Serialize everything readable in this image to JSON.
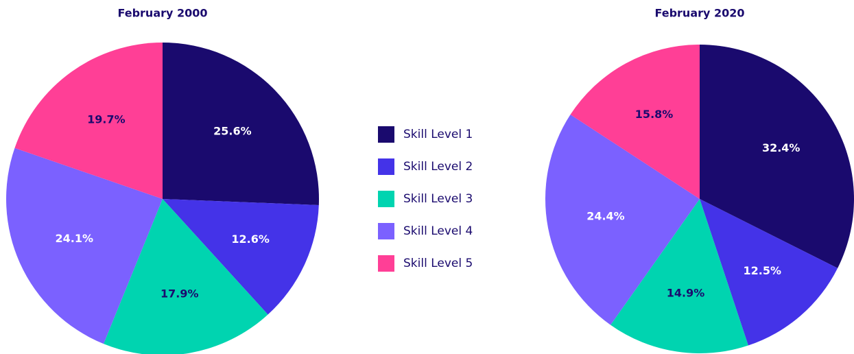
{
  "legend": {
    "categories": [
      "Skill Level 1",
      "Skill Level 2",
      "Skill Level 3",
      "Skill Level 4",
      "Skill Level 5"
    ],
    "colors": [
      "#1a0a6e",
      "#4433e8",
      "#00d4b0",
      "#7b61ff",
      "#ff3f96"
    ],
    "label_colors": [
      "#ffffff",
      "#ffffff",
      "#1a0a6e",
      "#ffffff",
      "#1a0a6e"
    ]
  },
  "chart_data": [
    {
      "type": "pie",
      "title": "February 2000",
      "values": [
        25.6,
        12.6,
        17.9,
        24.1,
        19.7
      ],
      "value_labels": [
        "25.6%",
        "12.6%",
        "17.9%",
        "24.1%",
        "19.7%"
      ]
    },
    {
      "type": "pie",
      "title": "February 2020",
      "values": [
        32.4,
        12.5,
        14.9,
        24.4,
        15.8
      ],
      "value_labels": [
        "32.4%",
        "12.5%",
        "14.9%",
        "24.4%",
        "15.8%"
      ]
    }
  ]
}
